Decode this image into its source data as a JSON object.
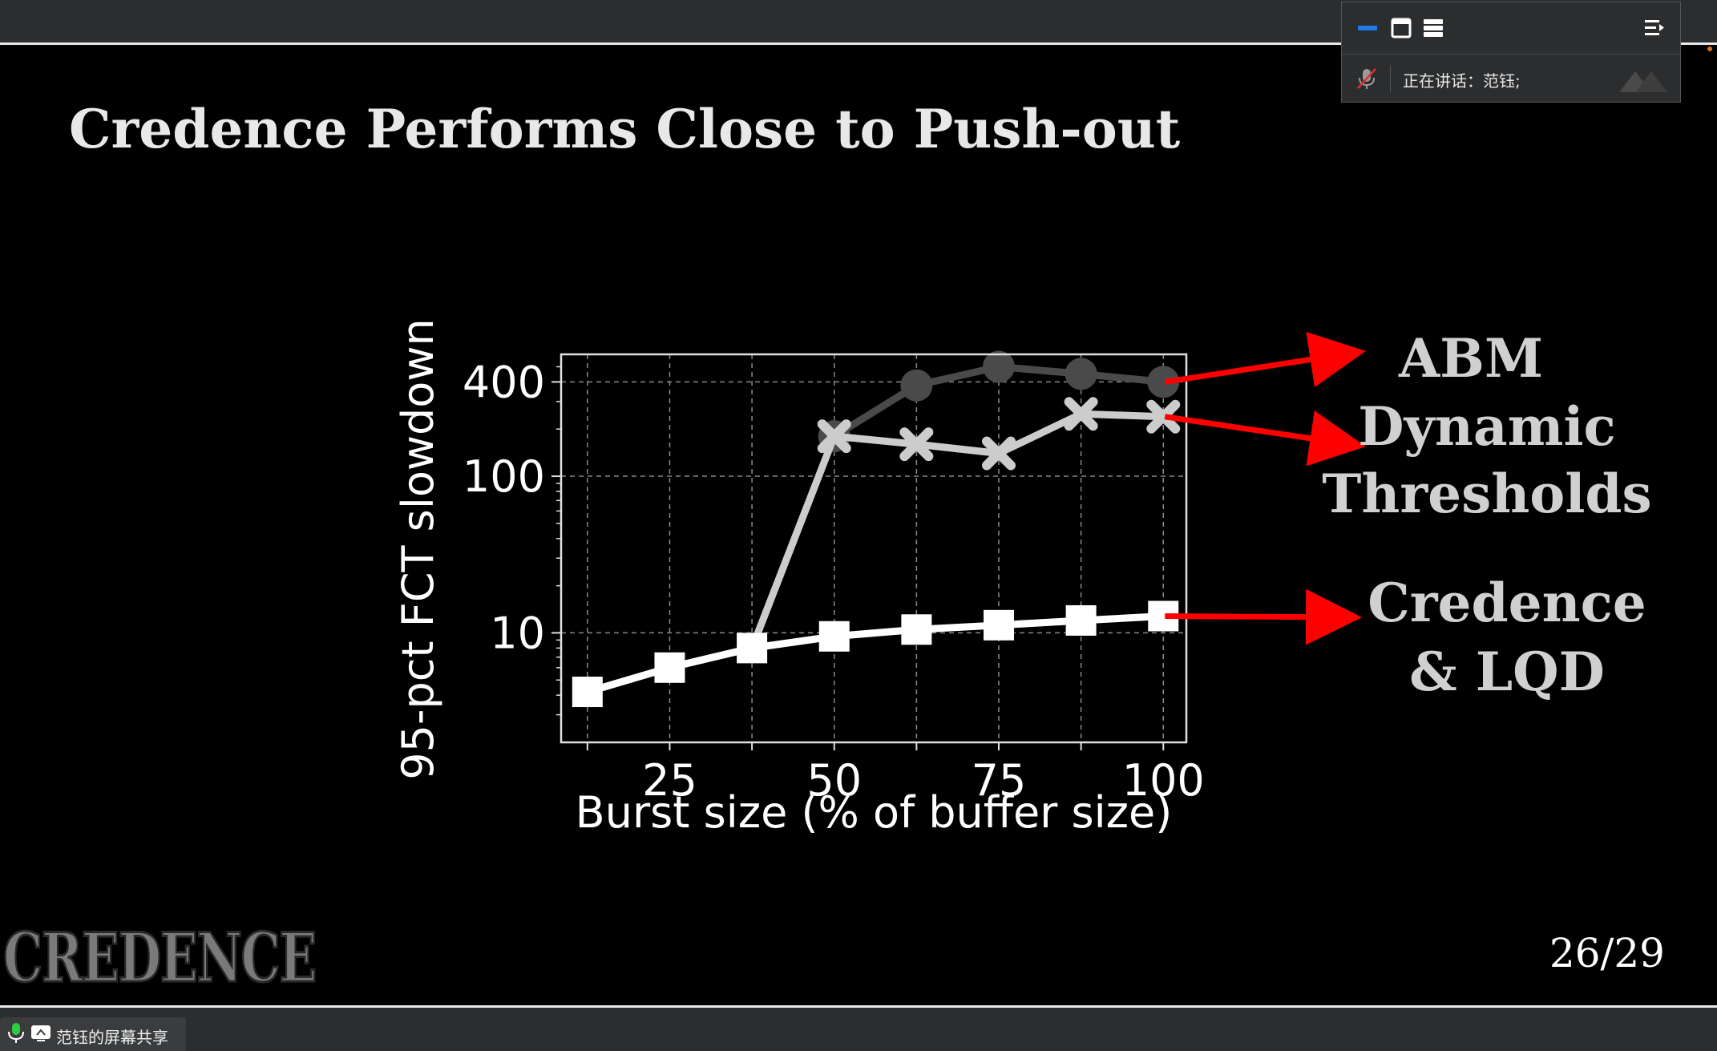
{
  "slide": {
    "title": "Credence Performs Close to Push-out",
    "page_number": "26/29",
    "logo_text": "CREDENCE"
  },
  "chart_data": {
    "type": "line",
    "xlabel": "Burst size (% of buffer size)",
    "ylabel": "95-pct FCT slowdown",
    "yscale": "log",
    "xlim": [
      8.5,
      103.5
    ],
    "ylim": [
      2,
      600
    ],
    "x_ticks": [
      25,
      50,
      75,
      100
    ],
    "x_tick_labels": [
      "25",
      "50",
      "75",
      "100"
    ],
    "y_ticks": [
      10,
      100,
      400
    ],
    "y_tick_labels": [
      "10",
      "100",
      "400"
    ],
    "grid": true,
    "x": [
      12.5,
      25,
      37.5,
      50,
      62.5,
      75,
      87.5,
      100
    ],
    "series": [
      {
        "key": "abm",
        "values": [
          4.2,
          6.0,
          8.0,
          180,
          380,
          500,
          450,
          400
        ],
        "color": "#4a4a4a",
        "marker": "circle"
      },
      {
        "key": "dt",
        "values": [
          4.2,
          6.0,
          8.0,
          180,
          160,
          140,
          250,
          240
        ],
        "color": "#cccccc",
        "marker": "x"
      },
      {
        "key": "credence",
        "values": [
          4.2,
          6.0,
          8.0,
          9.5,
          10.5,
          11.2,
          12.0,
          12.8
        ],
        "color": "#ffffff",
        "marker": "square"
      }
    ],
    "annotations": [
      {
        "lines": [
          "ABM"
        ],
        "color": "#d0d0d0"
      },
      {
        "lines": [
          "Dynamic",
          "Thresholds"
        ],
        "color": "#d0d0d0"
      },
      {
        "lines": [
          "Credence",
          "& LQD"
        ],
        "color": "#d0d0d0"
      }
    ],
    "arrow_color": "#ff0000"
  },
  "meeting_panel": {
    "speaking_label": "正在讲话：范钰;"
  },
  "share_tab": {
    "label": "范钰的屏幕共享"
  },
  "icons": {
    "panel": [
      "minimize-icon",
      "window-icon",
      "list-icon",
      "menu-collapse-icon"
    ],
    "mic": "mic-muted-icon",
    "share_mic": "mic-icon",
    "share_screen": "screen-share-icon"
  }
}
